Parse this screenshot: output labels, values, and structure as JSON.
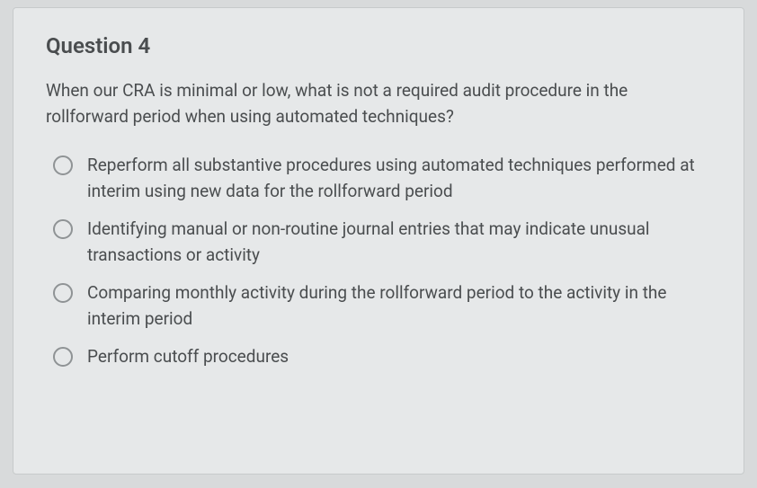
{
  "card": {
    "background_color": "#e6e8e9",
    "border_color": "#c7cacb",
    "border_radius": 4
  },
  "page_background": "#d8dadb",
  "text_color": "#4a4d4f",
  "radio_border_color": "#8f9395",
  "question": {
    "title": "Question 4",
    "prompt": "When our CRA is minimal or low, what is not a required audit procedure in the rollforward period when using automated techniques?",
    "title_fontsize": 24,
    "body_fontsize": 19,
    "options": [
      "Reperform all substantive procedures using automated techniques performed at interim using new data for the rollforward period",
      "Identifying manual or non-routine journal entries that may indicate unusual transactions or activity",
      "Comparing monthly activity during the rollforward period to the activity in the interim period",
      "Perform cutoff procedures"
    ]
  }
}
